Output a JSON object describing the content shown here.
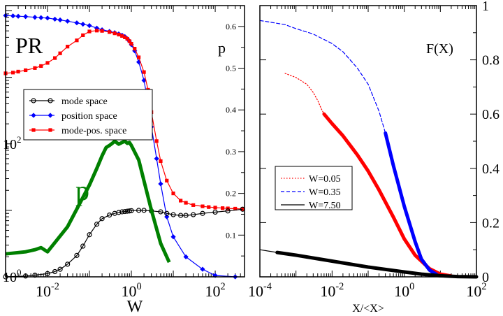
{
  "chart_data": [
    {
      "type": "line",
      "xscale": "log",
      "yscale": "log",
      "xlabel": "W",
      "x_ticks": [
        {
          "value": 0.01,
          "base": "10",
          "exp": "-2"
        },
        {
          "value": 1,
          "base": "10",
          "exp": "0"
        },
        {
          "value": 100,
          "base": "10",
          "exp": "2"
        }
      ],
      "y_left_ticks": [
        {
          "value": 1,
          "base": "10",
          "exp": "0"
        },
        {
          "value": 100,
          "base": "10",
          "exp": "2"
        }
      ],
      "xlim": [
        0.001,
        500
      ],
      "ylim": [
        1,
        12000
      ],
      "inset_labels": {
        "pr": "PR",
        "p_axis": "p",
        "p_curve": "p"
      },
      "legend": {
        "placement": "left",
        "entries": [
          {
            "label": "mode space",
            "color": "#000000",
            "marker": "circle"
          },
          {
            "label": "position space",
            "color": "#0000ff",
            "marker": "diamond"
          },
          {
            "label": "mode-pos. space",
            "color": "#ff0000",
            "marker": "square"
          }
        ]
      },
      "p_axis": {
        "ylim": [
          0,
          0.65
        ],
        "ticks": [
          "0.1",
          "0.2",
          "0.3",
          "0.4",
          "0.5",
          "0.6"
        ],
        "tick_values": [
          0.1,
          0.2,
          0.3,
          0.4,
          0.5,
          0.6
        ]
      },
      "series": [
        {
          "name": "position space",
          "color": "#0000ff",
          "marker": "diamond",
          "x": [
            0.001,
            0.0015,
            0.002,
            0.003,
            0.005,
            0.007,
            0.01,
            0.015,
            0.02,
            0.03,
            0.05,
            0.07,
            0.1,
            0.15,
            0.2,
            0.3,
            0.4,
            0.5,
            0.6,
            0.7,
            0.8,
            0.9,
            1.0,
            1.2,
            1.5,
            2,
            2.5,
            3,
            4,
            5,
            7,
            10,
            20,
            50,
            100,
            300
          ],
          "y": [
            8500,
            8400,
            8300,
            8200,
            8000,
            7900,
            7800,
            7500,
            7300,
            7000,
            6600,
            6300,
            6000,
            5500,
            5200,
            4900,
            4700,
            4500,
            4300,
            4100,
            3800,
            3500,
            3100,
            2500,
            1700,
            900,
            420,
            180,
            60,
            25,
            8,
            4,
            2,
            1.3,
            1.05,
            1.0
          ]
        },
        {
          "name": "mode-pos. space",
          "color": "#ff0000",
          "marker": "square",
          "x": [
            0.001,
            0.0015,
            0.002,
            0.003,
            0.005,
            0.007,
            0.01,
            0.015,
            0.02,
            0.03,
            0.05,
            0.07,
            0.1,
            0.15,
            0.2,
            0.3,
            0.4,
            0.5,
            0.6,
            0.7,
            0.8,
            0.9,
            1.0,
            1.2,
            1.5,
            2,
            2.5,
            3,
            4,
            5,
            7,
            10,
            15,
            20,
            30,
            50,
            70,
            100,
            150,
            200,
            300,
            450
          ],
          "y": [
            1150,
            1180,
            1220,
            1280,
            1380,
            1480,
            1650,
            1950,
            2300,
            2900,
            3600,
            4300,
            4900,
            5050,
            5000,
            4800,
            4600,
            4400,
            4200,
            4000,
            3800,
            3500,
            3200,
            2700,
            2000,
            1200,
            650,
            300,
            110,
            55,
            28,
            18,
            14,
            13,
            12,
            11.5,
            11.2,
            11,
            10.8,
            10.7,
            10.6,
            10.5
          ]
        },
        {
          "name": "mode space",
          "color": "#000000",
          "marker": "circle",
          "x": [
            0.001,
            0.003,
            0.005,
            0.01,
            0.015,
            0.02,
            0.03,
            0.05,
            0.07,
            0.1,
            0.15,
            0.2,
            0.3,
            0.4,
            0.5,
            0.6,
            0.7,
            0.8,
            0.9,
            1.0,
            1.5,
            2,
            3,
            5,
            7,
            10,
            15,
            20,
            30,
            50,
            100,
            200,
            450
          ],
          "y": [
            1.0,
            1.03,
            1.06,
            1.12,
            1.2,
            1.3,
            1.55,
            2.1,
            2.9,
            4.3,
            6.2,
            7.5,
            8.5,
            9.0,
            9.3,
            9.5,
            9.6,
            9.7,
            9.8,
            9.9,
            10.0,
            10.0,
            9.8,
            9.5,
            9.0,
            8.6,
            8.4,
            8.4,
            8.6,
            9.0,
            9.4,
            9.8,
            10.4
          ]
        },
        {
          "name": "p",
          "axis": "p",
          "color": "#008000",
          "marker": "none",
          "x": [
            0.001,
            0.003,
            0.005,
            0.007,
            0.01,
            0.03,
            0.1,
            0.15,
            0.2,
            0.25,
            0.3,
            0.35,
            0.4,
            0.5,
            0.6,
            0.7,
            0.8,
            0.9,
            1.0,
            1.5,
            2,
            3,
            5,
            8
          ],
          "y": [
            0.055,
            0.06,
            0.065,
            0.07,
            0.06,
            0.12,
            0.22,
            0.26,
            0.29,
            0.31,
            0.315,
            0.32,
            0.325,
            0.318,
            0.322,
            0.325,
            0.32,
            0.322,
            0.315,
            0.28,
            0.23,
            0.16,
            0.08,
            0.035
          ]
        }
      ]
    },
    {
      "type": "line",
      "xscale": "log",
      "xlabel": "X/<X>",
      "ylabel": "F(X)",
      "x_ticks": [
        {
          "value": 0.0001,
          "base": "10",
          "exp": "-4"
        },
        {
          "value": 0.01,
          "base": "10",
          "exp": "-2"
        },
        {
          "value": 1,
          "base": "10",
          "exp": "0"
        },
        {
          "value": 100,
          "base": "10",
          "exp": "2"
        }
      ],
      "xlim": [
        0.0001,
        100
      ],
      "ylim": [
        0,
        1
      ],
      "y_ticks": [
        {
          "value": 0,
          "label": "0"
        },
        {
          "value": 0.2,
          "label": "0.2"
        },
        {
          "value": 0.4,
          "label": "0.4"
        },
        {
          "value": 0.6,
          "label": "0.6"
        },
        {
          "value": 0.8,
          "label": "0.8"
        },
        {
          "value": 1,
          "label": "1"
        }
      ],
      "legend": {
        "placement": "middle-left",
        "entries": [
          {
            "label": "W=0.05",
            "color": "#ff0000",
            "style": "dotted"
          },
          {
            "label": "W=0.35",
            "color": "#0000ff",
            "style": "dashed"
          },
          {
            "label": "W=7.50",
            "color": "#000000",
            "style": "solid"
          }
        ]
      },
      "series": [
        {
          "name": "W=0.05",
          "color": "#ff0000",
          "style": "dotted",
          "x": [
            0.0005,
            0.001,
            0.002,
            0.003,
            0.004,
            0.005,
            0.006
          ],
          "y": [
            0.75,
            0.735,
            0.71,
            0.68,
            0.65,
            0.62,
            0.6
          ]
        },
        {
          "name": "W=0.05",
          "color": "#ff0000",
          "style": "thick",
          "x": [
            0.006,
            0.01,
            0.02,
            0.05,
            0.1,
            0.2,
            0.5,
            1,
            2,
            5,
            10,
            20
          ],
          "y": [
            0.6,
            0.565,
            0.52,
            0.45,
            0.39,
            0.32,
            0.22,
            0.14,
            0.08,
            0.03,
            0.01,
            0.003
          ]
        },
        {
          "name": "W=0.35",
          "color": "#0000ff",
          "style": "dashed",
          "x": [
            0.0001,
            0.0005,
            0.001,
            0.003,
            0.01,
            0.02,
            0.05,
            0.1,
            0.2,
            0.3
          ],
          "y": [
            0.945,
            0.93,
            0.915,
            0.895,
            0.86,
            0.83,
            0.77,
            0.71,
            0.61,
            0.53
          ]
        },
        {
          "name": "W=0.35",
          "color": "#0000ff",
          "style": "thick",
          "x": [
            0.3,
            0.5,
            1,
            2,
            3,
            5,
            8
          ],
          "y": [
            0.53,
            0.41,
            0.26,
            0.13,
            0.065,
            0.025,
            0.008
          ]
        },
        {
          "name": "W=7.50",
          "color": "#000000",
          "style": "solid",
          "x": [
            0.0001,
            0.0003
          ],
          "y": [
            0.1,
            0.09
          ]
        },
        {
          "name": "W=7.50",
          "color": "#000000",
          "style": "thick",
          "x": [
            0.0003,
            0.001,
            0.01,
            0.1,
            1,
            3,
            10,
            30,
            100
          ],
          "y": [
            0.09,
            0.08,
            0.058,
            0.036,
            0.018,
            0.01,
            0.004,
            0.001,
            0.0
          ]
        }
      ]
    }
  ]
}
